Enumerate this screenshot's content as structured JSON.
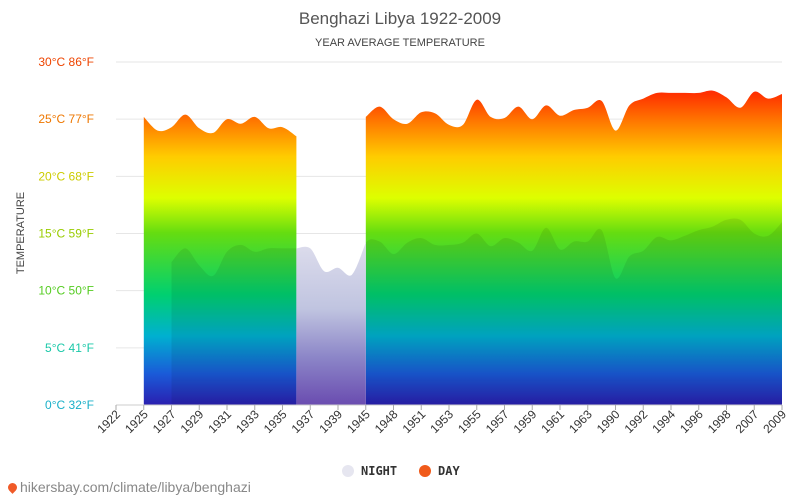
{
  "source_text": "hikersbay.com/climate/libya/benghazi",
  "chart_data": {
    "type": "area",
    "title": "Benghazi Libya 1922-2009",
    "subtitle": "YEAR AVERAGE TEMPERATURE",
    "ylabel": "TEMPERATURE",
    "ylim": [
      0,
      30
    ],
    "grid": true,
    "legend_placement": "bottom-center",
    "yticks": [
      {
        "value": 0,
        "label": "0°C 32°F",
        "color": "#1ab0c8"
      },
      {
        "value": 5,
        "label": "5°C 41°F",
        "color": "#1ac8a8"
      },
      {
        "value": 10,
        "label": "10°C 50°F",
        "color": "#55cc22"
      },
      {
        "value": 15,
        "label": "15°C 59°F",
        "color": "#99cc00"
      },
      {
        "value": 20,
        "label": "20°C 68°F",
        "color": "#cccc00"
      },
      {
        "value": 25,
        "label": "25°C 77°F",
        "color": "#ee7700"
      },
      {
        "value": 30,
        "label": "30°C 86°F",
        "color": "#ee4400"
      }
    ],
    "x": [
      "1922",
      "1925",
      "1927",
      "1929",
      "1931",
      "1933",
      "1935",
      "1937",
      "1939",
      "1945",
      "1948",
      "1951",
      "1953",
      "1955",
      "1957",
      "1959",
      "1961",
      "1963",
      "1990",
      "1992",
      "1994",
      "1996",
      "1998",
      "2007",
      "2009"
    ],
    "series": [
      {
        "name": "NIGHT",
        "legend_color": "#e8e8f2",
        "points": [
          {
            "x": 2,
            "y": 12.5
          },
          {
            "x": 2.5,
            "y": 13.7
          },
          {
            "x": 3,
            "y": 12.2
          },
          {
            "x": 3.5,
            "y": 11.3
          },
          {
            "x": 4,
            "y": 13.4
          },
          {
            "x": 4.5,
            "y": 14.0
          },
          {
            "x": 5,
            "y": 13.4
          },
          {
            "x": 5.5,
            "y": 13.7
          },
          {
            "x": 6,
            "y": 13.7
          },
          {
            "x": 6.5,
            "y": 13.7
          },
          {
            "x": 7,
            "y": 13.7
          },
          {
            "x": 7.5,
            "y": 11.7
          },
          {
            "x": 8,
            "y": 12.0
          },
          {
            "x": 8.5,
            "y": 11.4
          },
          {
            "x": 9,
            "y": 14.2
          },
          {
            "x": 9.5,
            "y": 14.3
          },
          {
            "x": 10,
            "y": 13.2
          },
          {
            "x": 10.5,
            "y": 14.2
          },
          {
            "x": 11,
            "y": 14.6
          },
          {
            "x": 11.5,
            "y": 14.0
          },
          {
            "x": 12,
            "y": 14.0
          },
          {
            "x": 12.5,
            "y": 14.2
          },
          {
            "x": 13,
            "y": 15.0
          },
          {
            "x": 13.5,
            "y": 13.9
          },
          {
            "x": 14,
            "y": 14.6
          },
          {
            "x": 14.5,
            "y": 14.2
          },
          {
            "x": 15,
            "y": 13.5
          },
          {
            "x": 15.5,
            "y": 15.5
          },
          {
            "x": 16,
            "y": 13.6
          },
          {
            "x": 16.5,
            "y": 14.3
          },
          {
            "x": 17,
            "y": 14.3
          },
          {
            "x": 17.5,
            "y": 15.3
          },
          {
            "x": 18,
            "y": 11.1
          },
          {
            "x": 18.5,
            "y": 13.0
          },
          {
            "x": 19,
            "y": 13.5
          },
          {
            "x": 19.5,
            "y": 14.7
          },
          {
            "x": 20,
            "y": 14.4
          },
          {
            "x": 20.5,
            "y": 14.8
          },
          {
            "x": 21,
            "y": 15.3
          },
          {
            "x": 21.5,
            "y": 15.6
          },
          {
            "x": 22,
            "y": 16.2
          },
          {
            "x": 22.5,
            "y": 16.2
          },
          {
            "x": 23,
            "y": 15.0
          },
          {
            "x": 23.5,
            "y": 14.8
          },
          {
            "x": 24,
            "y": 16.0
          }
        ]
      },
      {
        "name": "DAY",
        "legend_color": "#f05a1a",
        "segments": [
          [
            {
              "x": 1,
              "y": 25.2
            },
            {
              "x": 1.5,
              "y": 24.0
            },
            {
              "x": 2,
              "y": 24.3
            },
            {
              "x": 2.5,
              "y": 25.4
            },
            {
              "x": 3,
              "y": 24.2
            },
            {
              "x": 3.5,
              "y": 23.8
            },
            {
              "x": 4,
              "y": 25.0
            },
            {
              "x": 4.5,
              "y": 24.6
            },
            {
              "x": 5,
              "y": 25.2
            },
            {
              "x": 5.5,
              "y": 24.2
            },
            {
              "x": 6,
              "y": 24.3
            },
            {
              "x": 6.5,
              "y": 23.5
            }
          ],
          [
            {
              "x": 9,
              "y": 25.2
            },
            {
              "x": 9.5,
              "y": 26.1
            },
            {
              "x": 10,
              "y": 25.0
            },
            {
              "x": 10.5,
              "y": 24.6
            },
            {
              "x": 11,
              "y": 25.6
            },
            {
              "x": 11.5,
              "y": 25.5
            },
            {
              "x": 12,
              "y": 24.5
            },
            {
              "x": 12.5,
              "y": 24.5
            },
            {
              "x": 13,
              "y": 26.7
            },
            {
              "x": 13.5,
              "y": 25.2
            },
            {
              "x": 14,
              "y": 25.1
            },
            {
              "x": 14.5,
              "y": 26.1
            },
            {
              "x": 15,
              "y": 25.0
            },
            {
              "x": 15.5,
              "y": 26.2
            },
            {
              "x": 16,
              "y": 25.3
            },
            {
              "x": 16.5,
              "y": 25.8
            },
            {
              "x": 17,
              "y": 26.0
            },
            {
              "x": 17.5,
              "y": 26.6
            },
            {
              "x": 18,
              "y": 24.0
            },
            {
              "x": 18.5,
              "y": 26.2
            },
            {
              "x": 19,
              "y": 26.8
            },
            {
              "x": 19.5,
              "y": 27.3
            },
            {
              "x": 20,
              "y": 27.3
            },
            {
              "x": 20.5,
              "y": 27.3
            },
            {
              "x": 21,
              "y": 27.3
            },
            {
              "x": 21.5,
              "y": 27.5
            },
            {
              "x": 22,
              "y": 26.9
            },
            {
              "x": 22.5,
              "y": 26.0
            },
            {
              "x": 23,
              "y": 27.4
            },
            {
              "x": 23.5,
              "y": 26.8
            },
            {
              "x": 24,
              "y": 27.2
            }
          ]
        ]
      }
    ]
  }
}
